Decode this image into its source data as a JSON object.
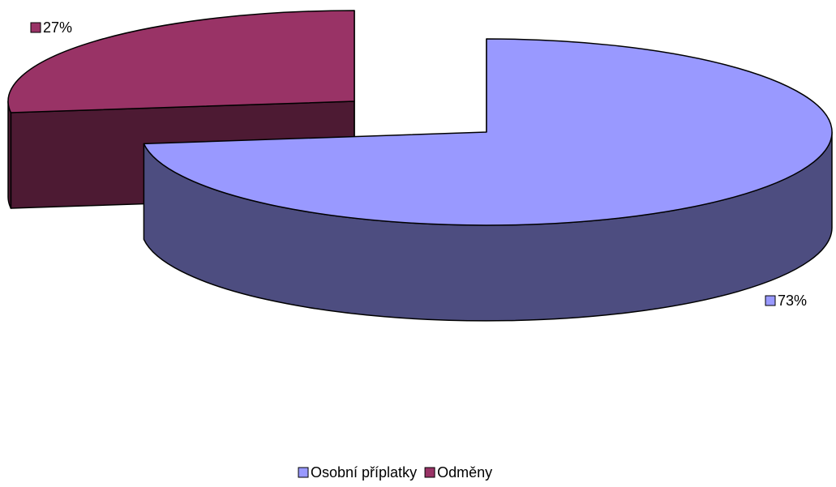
{
  "chart_data": {
    "type": "pie3d",
    "categories": [
      "Osobní příplatky",
      "Odměny"
    ],
    "values": [
      73,
      27
    ],
    "value_labels": [
      "73%",
      "27%"
    ],
    "colors": [
      "#9999ff",
      "#993366"
    ],
    "legend": "bottom"
  }
}
